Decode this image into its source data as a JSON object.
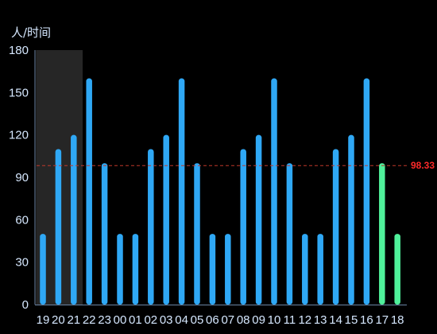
{
  "chart_data": {
    "type": "bar",
    "ylabel": "人/时间",
    "ylim": [
      0,
      180
    ],
    "yticks": [
      0,
      30,
      60,
      90,
      120,
      150,
      180
    ],
    "categories": [
      "19",
      "20",
      "21",
      "22",
      "23",
      "00",
      "01",
      "02",
      "03",
      "04",
      "05",
      "06",
      "07",
      "08",
      "09",
      "10",
      "11",
      "12",
      "13",
      "14",
      "15",
      "16",
      "17",
      "18"
    ],
    "values": [
      50,
      110,
      120,
      160,
      100,
      50,
      50,
      110,
      120,
      160,
      100,
      50,
      50,
      110,
      120,
      160,
      100,
      50,
      50,
      110,
      120,
      160,
      100,
      50
    ],
    "highlighted_categories": [
      "17",
      "18"
    ],
    "shaded_range": [
      "19",
      "21"
    ],
    "mean_line": {
      "value": 98.33,
      "label": "98.33",
      "style": "dashed"
    },
    "grid": false,
    "legend": "none"
  },
  "colors": {
    "background": "#000000",
    "bar": "#2fa8f5",
    "bar_highlight": "#4ff09a",
    "shade": "#262626",
    "axis": "#6b86a6",
    "text": "#d6e8ff",
    "mean_line": "#c0392b",
    "mean_label": "#ff2a2a"
  }
}
